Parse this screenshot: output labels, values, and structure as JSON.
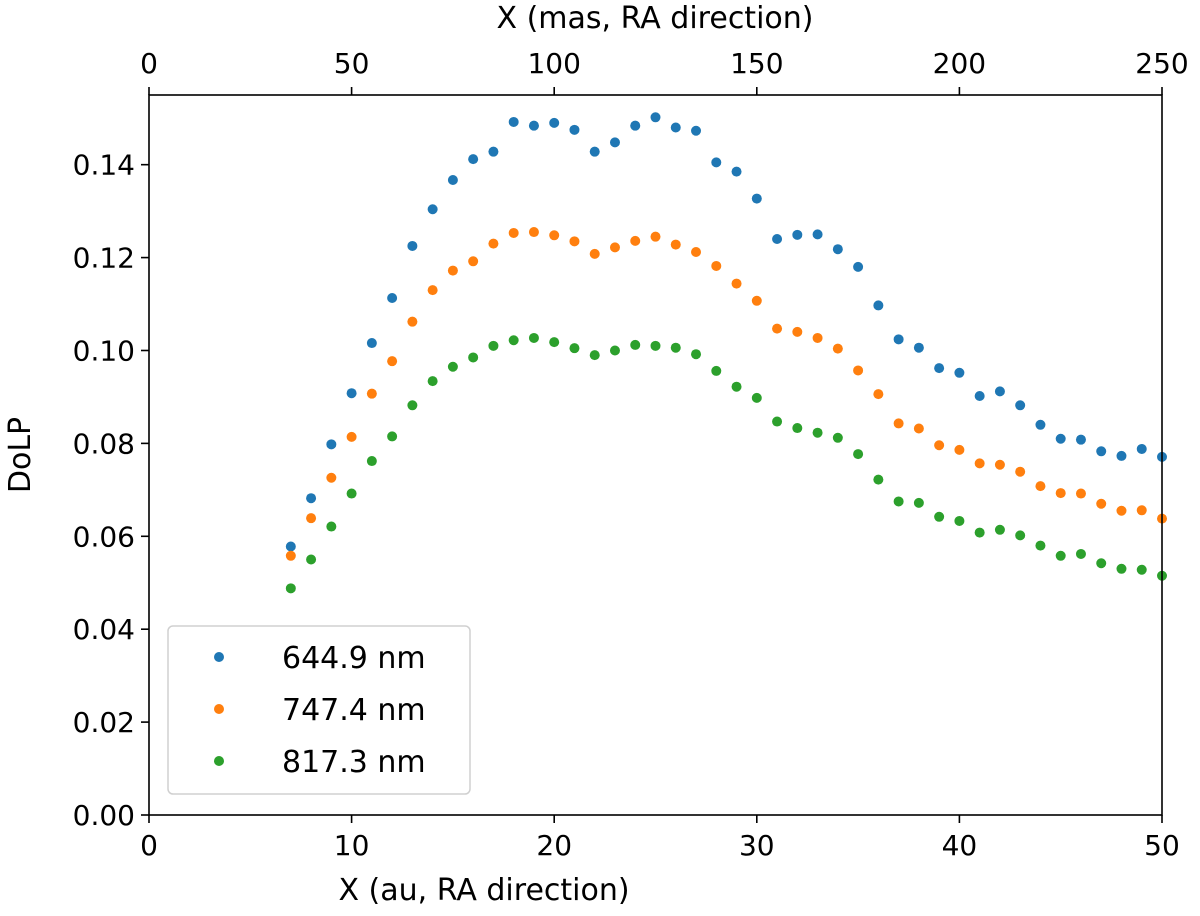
{
  "chart_data": {
    "type": "scatter",
    "title": "",
    "xlabel": "X (au, RA direction)",
    "ylabel": "DoLP",
    "top_xlabel": "X (mas, RA direction)",
    "xlim": [
      0,
      50
    ],
    "ylim": [
      0,
      0.155
    ],
    "top_xlim": [
      0,
      250
    ],
    "xticks": [
      0,
      10,
      20,
      30,
      40,
      50
    ],
    "xtick_labels": [
      "0",
      "10",
      "20",
      "30",
      "40",
      "50"
    ],
    "top_xticks": [
      0,
      50,
      100,
      150,
      200,
      250
    ],
    "top_xtick_labels": [
      "0",
      "50",
      "100",
      "150",
      "200",
      "250"
    ],
    "yticks": [
      0,
      0.02,
      0.04,
      0.06,
      0.08,
      0.1,
      0.12,
      0.14
    ],
    "ytick_labels": [
      "0.00",
      "0.02",
      "0.04",
      "0.06",
      "0.08",
      "0.10",
      "0.12",
      "0.14"
    ],
    "grid": false,
    "legend_position": "lower-left",
    "x": [
      7,
      8,
      9,
      10,
      11,
      12,
      13,
      14,
      15,
      16,
      17,
      18,
      19,
      20,
      21,
      22,
      23,
      24,
      25,
      26,
      27,
      28,
      29,
      30,
      31,
      32,
      33,
      34,
      35,
      36,
      37,
      38,
      39,
      40,
      41,
      42,
      43,
      44,
      45,
      46,
      47,
      48,
      49,
      50
    ],
    "series": [
      {
        "name": "644.9 nm",
        "color": "#1f77b4",
        "values": [
          0.0578,
          0.0682,
          0.0798,
          0.0908,
          0.1016,
          0.1113,
          0.1225,
          0.1304,
          0.1367,
          0.1412,
          0.1428,
          0.1492,
          0.1484,
          0.149,
          0.1475,
          0.1428,
          0.1448,
          0.1484,
          0.1502,
          0.148,
          0.1473,
          0.1405,
          0.1385,
          0.1327,
          0.124,
          0.1249,
          0.125,
          0.1218,
          0.118,
          0.1097,
          0.1024,
          0.1006,
          0.0962,
          0.0952,
          0.0902,
          0.0912,
          0.0882,
          0.084,
          0.081,
          0.0808,
          0.0783,
          0.0773,
          0.0788,
          0.0771
        ]
      },
      {
        "name": "747.4 nm",
        "color": "#ff7f0e",
        "values": [
          0.0558,
          0.0639,
          0.0726,
          0.0814,
          0.0907,
          0.0977,
          0.1062,
          0.113,
          0.1172,
          0.1192,
          0.123,
          0.1253,
          0.1255,
          0.1248,
          0.1235,
          0.1208,
          0.1222,
          0.1236,
          0.1245,
          0.1228,
          0.1212,
          0.1182,
          0.1144,
          0.1107,
          0.1047,
          0.104,
          0.1027,
          0.1004,
          0.0957,
          0.0906,
          0.0843,
          0.0832,
          0.0796,
          0.0786,
          0.0757,
          0.0754,
          0.0739,
          0.0708,
          0.0693,
          0.0692,
          0.067,
          0.0655,
          0.0656,
          0.0638
        ]
      },
      {
        "name": "817.3 nm",
        "color": "#2ca02c",
        "values": [
          0.0488,
          0.055,
          0.0621,
          0.0692,
          0.0762,
          0.0815,
          0.0882,
          0.0934,
          0.0965,
          0.0985,
          0.101,
          0.1022,
          0.1027,
          0.1018,
          0.1005,
          0.099,
          0.1,
          0.1012,
          0.101,
          0.1006,
          0.0992,
          0.0956,
          0.0922,
          0.0898,
          0.0847,
          0.0833,
          0.0823,
          0.0812,
          0.0777,
          0.0722,
          0.0675,
          0.0672,
          0.0642,
          0.0633,
          0.0608,
          0.0614,
          0.0602,
          0.058,
          0.0558,
          0.0562,
          0.0542,
          0.053,
          0.0528,
          0.0515
        ]
      }
    ]
  }
}
